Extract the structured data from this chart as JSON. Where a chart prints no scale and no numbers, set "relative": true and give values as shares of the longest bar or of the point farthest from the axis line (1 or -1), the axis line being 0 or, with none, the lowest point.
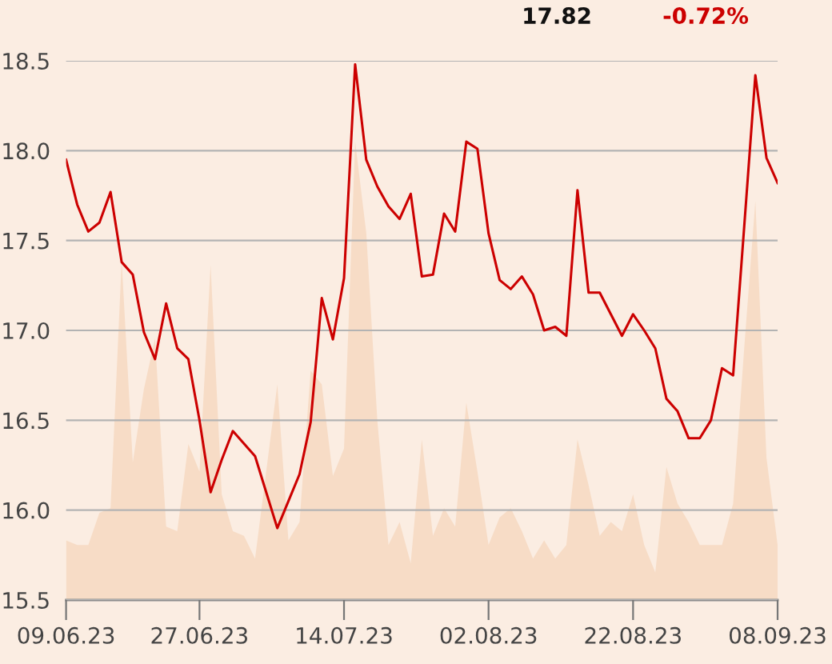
{
  "chart_data": [
    {
      "type": "area",
      "relative": true,
      "categories": [
        null,
        null,
        null,
        null,
        null,
        null,
        null,
        null,
        null,
        null,
        null,
        null,
        null,
        null,
        null,
        null,
        null,
        null,
        null,
        null,
        null,
        null,
        null,
        null,
        null,
        null,
        null,
        null,
        null,
        null,
        null,
        null,
        null,
        null,
        null,
        null,
        null,
        null,
        null,
        null,
        null,
        null,
        null,
        null,
        null,
        null,
        null,
        null,
        null,
        null,
        null,
        null,
        null,
        null,
        null,
        null,
        null,
        null,
        null,
        null,
        null,
        null,
        null,
        null,
        null
      ],
      "series": [
        {
          "color": "#f7dcc6",
          "values": [
            0.13,
            0.12,
            0.12,
            0.19,
            0.2,
            0.74,
            0.3,
            0.46,
            0.57,
            0.16,
            0.15,
            0.34,
            0.28,
            0.73,
            0.23,
            0.15,
            0.14,
            0.09,
            0.28,
            0.47,
            0.13,
            0.17,
            0.5,
            0.47,
            0.27,
            0.33,
            1,
            0.8,
            0.39,
            0.12,
            0.17,
            0.08,
            0.35,
            0.14,
            0.2,
            0.16,
            0.43,
            0.28,
            0.12,
            0.18,
            0.2,
            0.15,
            0.09,
            0.13,
            0.09,
            0.12,
            0.35,
            0.25,
            0.14,
            0.17,
            0.15,
            0.23,
            0.12,
            0.06,
            0.29,
            0.21,
            0.17,
            0.12,
            0.12,
            0.12,
            0.21,
            0.55,
            0.87,
            0.31,
            0.12
          ]
        }
      ]
    },
    {
      "type": "line",
      "categories": [
        "09.06.23",
        null,
        null,
        null,
        null,
        null,
        null,
        null,
        null,
        null,
        null,
        null,
        "27.06.23",
        null,
        null,
        null,
        null,
        null,
        null,
        null,
        null,
        null,
        null,
        null,
        null,
        "14.07.23",
        null,
        null,
        null,
        null,
        null,
        null,
        null,
        null,
        null,
        null,
        null,
        null,
        "02.08.23",
        null,
        null,
        null,
        null,
        null,
        null,
        null,
        null,
        null,
        null,
        null,
        null,
        "22.08.23",
        null,
        null,
        null,
        null,
        null,
        null,
        null,
        null,
        null,
        null,
        null,
        null,
        "08.09.23"
      ],
      "series": [
        {
          "color": "#cc0000",
          "values": [
            17.95,
            17.7,
            17.55,
            17.6,
            17.77,
            17.38,
            17.31,
            16.99,
            16.84,
            17.15,
            16.9,
            16.84,
            16.5,
            16.1,
            16.28,
            16.44,
            16.37,
            16.3,
            16.1,
            15.9,
            16.05,
            16.2,
            16.49,
            17.18,
            16.95,
            17.29,
            18.48,
            17.95,
            17.8,
            17.69,
            17.62,
            17.76,
            17.3,
            17.31,
            17.65,
            17.55,
            18.05,
            18.01,
            17.54,
            17.28,
            17.23,
            17.3,
            17.2,
            17.0,
            17.02,
            16.97,
            17.78,
            17.21,
            17.21,
            17.09,
            16.97,
            17.09,
            17.0,
            16.9,
            16.62,
            16.55,
            16.4,
            16.4,
            16.5,
            16.79,
            16.75,
            17.58,
            18.42,
            17.96,
            17.82
          ]
        }
      ],
      "ylim": [
        15.5,
        18.5
      ],
      "yticks": [
        15.5,
        {
          "value": 16,
          "label": "16.0"
        },
        16.5,
        {
          "value": 17,
          "label": "17.0"
        },
        17.5,
        {
          "value": 18,
          "label": "18.0"
        },
        18.5
      ],
      "grid": "y",
      "annotations": [
        "17.82",
        "-0.72%"
      ]
    }
  ]
}
